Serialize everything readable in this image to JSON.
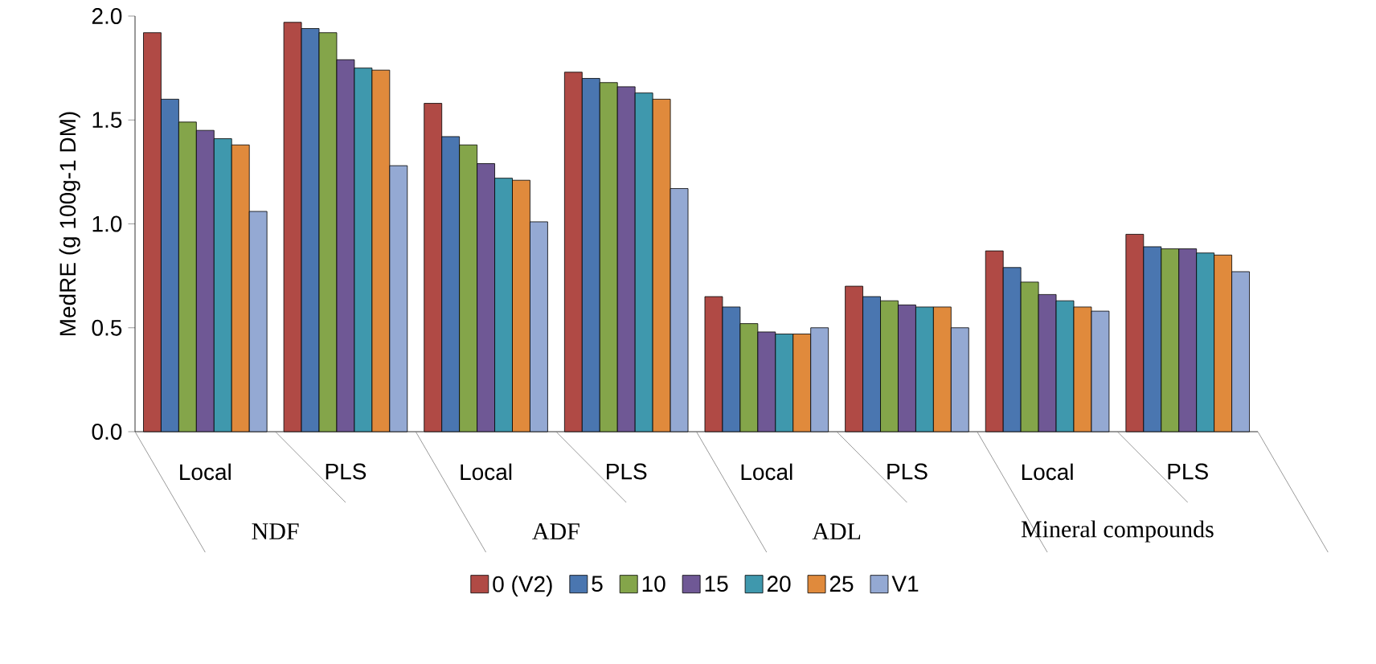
{
  "chart_data": {
    "type": "bar",
    "ylabel": "MedRE (g 100g-1 DM)",
    "categories": [
      "Local",
      "PLS",
      "Local",
      "PLS",
      "Local",
      "PLS",
      "Local",
      "PLS"
    ],
    "annotations": [
      "NDF",
      "ADF",
      "ADL",
      "Mineral compounds"
    ],
    "series": [
      {
        "name": "0 (V2)",
        "color": "#b04a45",
        "values": [
          1.92,
          1.97,
          1.58,
          1.73,
          0.65,
          0.7,
          0.87,
          0.95
        ]
      },
      {
        "name": "5",
        "color": "#4a76b0",
        "values": [
          1.6,
          1.94,
          1.42,
          1.7,
          0.6,
          0.65,
          0.79,
          0.89
        ]
      },
      {
        "name": "10",
        "color": "#84a54a",
        "values": [
          1.49,
          1.92,
          1.38,
          1.68,
          0.52,
          0.63,
          0.72,
          0.88
        ]
      },
      {
        "name": "15",
        "color": "#6f5895",
        "values": [
          1.45,
          1.79,
          1.29,
          1.66,
          0.48,
          0.61,
          0.66,
          0.88
        ]
      },
      {
        "name": "20",
        "color": "#3f98ad",
        "values": [
          1.41,
          1.75,
          1.22,
          1.63,
          0.47,
          0.6,
          0.63,
          0.86
        ]
      },
      {
        "name": "25",
        "color": "#e08a3c",
        "values": [
          1.38,
          1.74,
          1.21,
          1.6,
          0.47,
          0.6,
          0.6,
          0.85
        ]
      },
      {
        "name": "V1",
        "color": "#94a9d3",
        "values": [
          1.06,
          1.28,
          1.01,
          1.17,
          0.5,
          0.5,
          0.58,
          0.77
        ]
      }
    ],
    "ylim": [
      0,
      2
    ],
    "yticks": [
      {
        "value": 0,
        "label": "0.0"
      },
      {
        "value": 0.5,
        "label": "0.5"
      },
      {
        "value": 1,
        "label": "1.0"
      },
      {
        "value": 1.5,
        "label": "1.5"
      },
      {
        "value": 2,
        "label": "2.0"
      }
    ],
    "legend": "bottom",
    "grid": false
  }
}
